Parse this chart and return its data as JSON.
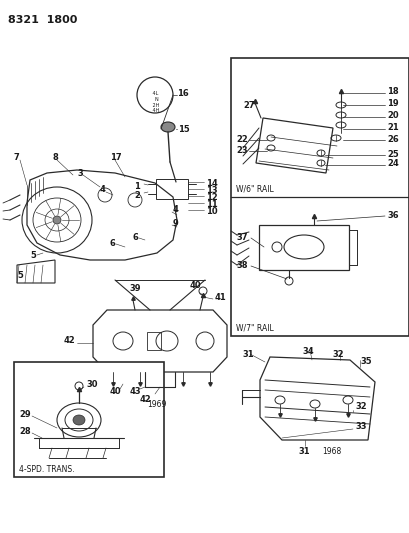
{
  "title": "8321  1800",
  "bg_color": "#ffffff",
  "line_color": "#2a2a2a",
  "text_color": "#1a1a1a",
  "fig_width": 4.1,
  "fig_height": 5.33,
  "dpi": 100,
  "box1_caption": "W/6\" RAIL",
  "box2_caption": "W/7\" RAIL",
  "box3_caption": "4-SPD. TRANS.",
  "year1": "1969",
  "year2": "1968",
  "shifter_text": " 4L\n  N\n 2H\n 4H"
}
